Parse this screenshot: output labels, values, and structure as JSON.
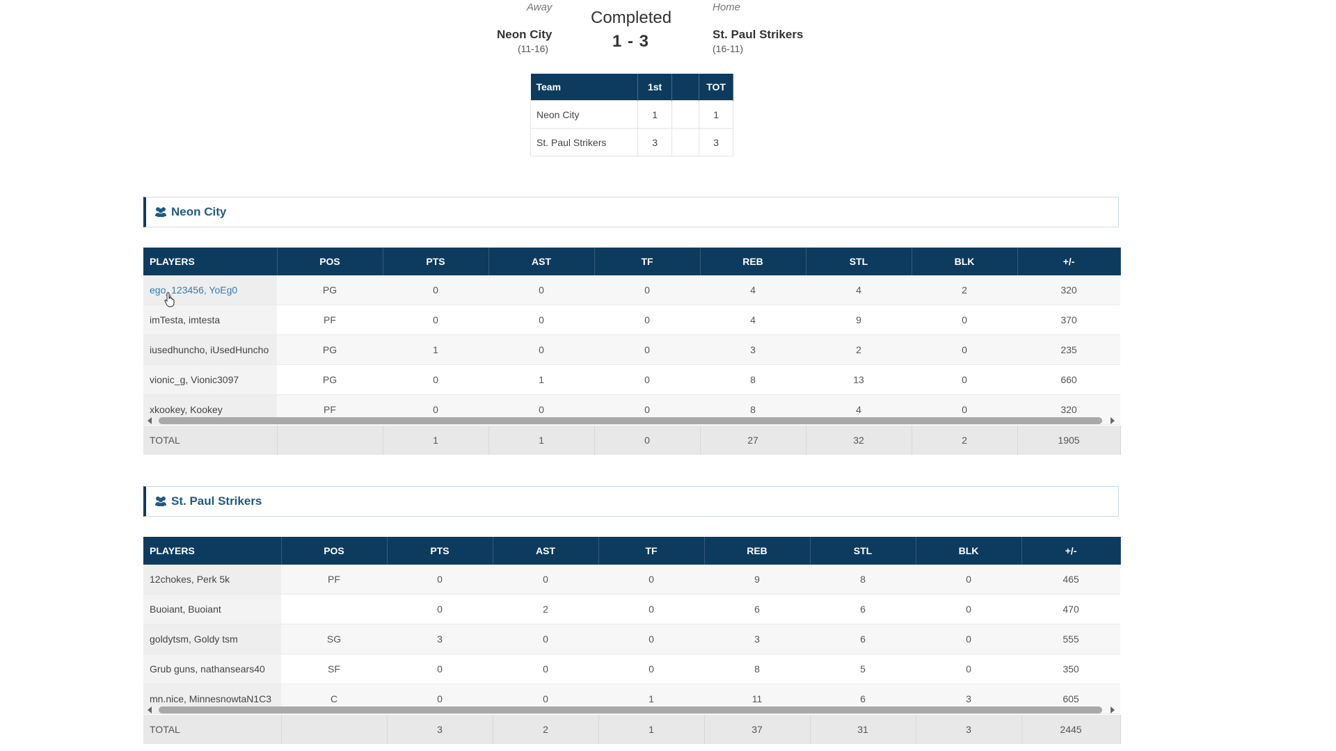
{
  "game": {
    "status": "Completed",
    "away": {
      "label": "Away",
      "name": "Neon City",
      "record": "(11-16)"
    },
    "home": {
      "label": "Home",
      "name": "St. Paul Strikers",
      "record": "(16-11)"
    },
    "score": "1 - 3"
  },
  "period_table": {
    "headers": [
      "Team",
      "1st",
      "",
      "TOT"
    ],
    "rows": [
      {
        "team": "Neon City",
        "p1": "1",
        "blank": "",
        "tot": "1"
      },
      {
        "team": "St. Paul Strikers",
        "p1": "3",
        "blank": "",
        "tot": "3"
      }
    ]
  },
  "columns": [
    "PLAYERS",
    "POS",
    "PTS",
    "AST",
    "TF",
    "REB",
    "STL",
    "BLK",
    "+/-"
  ],
  "teams": [
    {
      "name": "Neon City",
      "players": [
        {
          "name": "ego_123456, YoEg0",
          "pos": "PG",
          "pts": "0",
          "ast": "0",
          "tf": "0",
          "reb": "4",
          "stl": "4",
          "blk": "2",
          "pm": "320"
        },
        {
          "name": "imTesta, imtesta",
          "pos": "PF",
          "pts": "0",
          "ast": "0",
          "tf": "0",
          "reb": "4",
          "stl": "9",
          "blk": "0",
          "pm": "370"
        },
        {
          "name": "iusedhuncho, iUsedHuncho",
          "pos": "PG",
          "pts": "1",
          "ast": "0",
          "tf": "0",
          "reb": "3",
          "stl": "2",
          "blk": "0",
          "pm": "235"
        },
        {
          "name": "vionic_g, Vionic3097",
          "pos": "PG",
          "pts": "0",
          "ast": "1",
          "tf": "0",
          "reb": "8",
          "stl": "13",
          "blk": "0",
          "pm": "660"
        },
        {
          "name": "xkookey, Kookey",
          "pos": "PF",
          "pts": "0",
          "ast": "0",
          "tf": "0",
          "reb": "8",
          "stl": "4",
          "blk": "0",
          "pm": "320"
        }
      ],
      "total": {
        "label": "TOTAL",
        "pos": "",
        "pts": "1",
        "ast": "1",
        "tf": "0",
        "reb": "27",
        "stl": "32",
        "blk": "2",
        "pm": "1905"
      }
    },
    {
      "name": "St. Paul Strikers",
      "players": [
        {
          "name": "12chokes, Perk 5k",
          "pos": "PF",
          "pts": "0",
          "ast": "0",
          "tf": "0",
          "reb": "9",
          "stl": "8",
          "blk": "0",
          "pm": "465"
        },
        {
          "name": "Buoiant, Buoiant",
          "pos": "",
          "pts": "0",
          "ast": "2",
          "tf": "0",
          "reb": "6",
          "stl": "6",
          "blk": "0",
          "pm": "470"
        },
        {
          "name": "goldytsm, Goldy tsm",
          "pos": "SG",
          "pts": "3",
          "ast": "0",
          "tf": "0",
          "reb": "3",
          "stl": "6",
          "blk": "0",
          "pm": "555"
        },
        {
          "name": "Grub guns, nathansears40",
          "pos": "SF",
          "pts": "0",
          "ast": "0",
          "tf": "0",
          "reb": "8",
          "stl": "5",
          "blk": "0",
          "pm": "350"
        },
        {
          "name": "mn.nice, MinnesnowtaN1C3",
          "pos": "C",
          "pts": "0",
          "ast": "0",
          "tf": "1",
          "reb": "11",
          "stl": "6",
          "blk": "3",
          "pm": "605"
        }
      ],
      "total": {
        "label": "TOTAL",
        "pos": "",
        "pts": "3",
        "ast": "2",
        "tf": "1",
        "reb": "37",
        "stl": "31",
        "blk": "3",
        "pm": "2445"
      }
    }
  ],
  "icons": {
    "team": "users-icon",
    "scroll_left": "scroll-left-arrow",
    "scroll_right": "scroll-right-arrow",
    "cursor": "hand-cursor-icon"
  },
  "colors": {
    "header_bg": "#0d3b5e",
    "link": "#2f7db5",
    "section_title": "#1f5a85"
  }
}
